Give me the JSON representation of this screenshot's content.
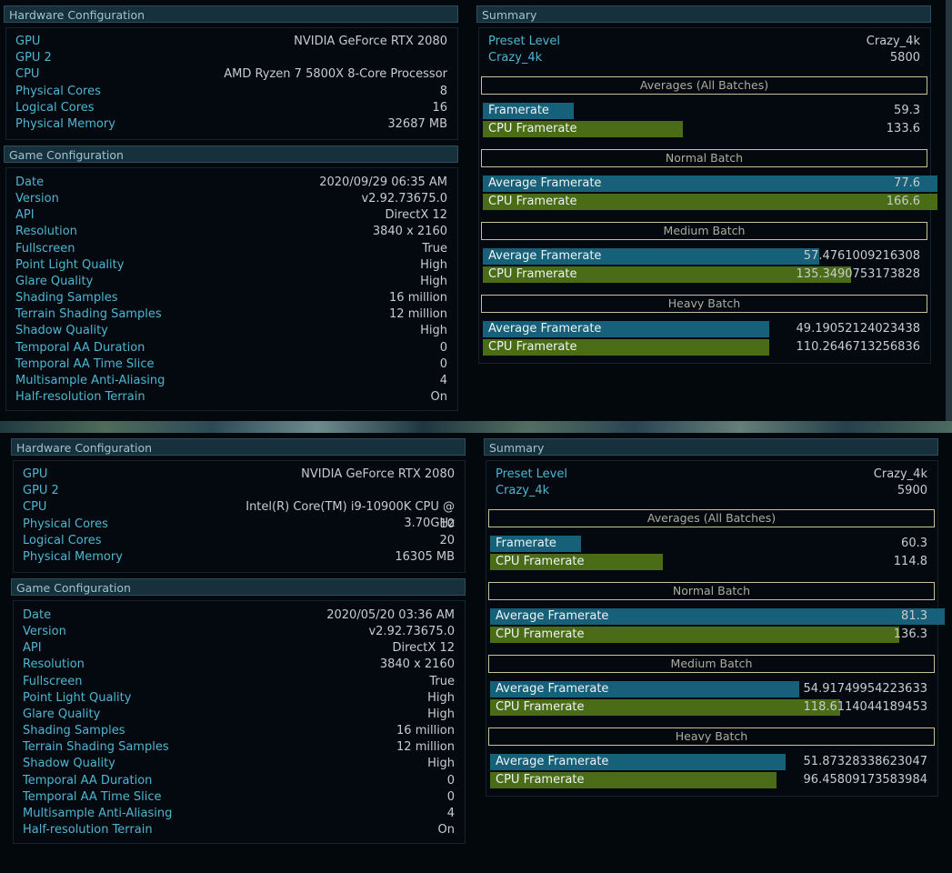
{
  "screens": [
    {
      "hardware": {
        "title": "Hardware Configuration",
        "rows": [
          {
            "label": "GPU",
            "value": "NVIDIA GeForce RTX 2080"
          },
          {
            "label": "GPU 2",
            "value": ""
          },
          {
            "label": "CPU",
            "value": "AMD Ryzen 7 5800X 8-Core Processor"
          },
          {
            "label": "Physical Cores",
            "value": "8"
          },
          {
            "label": "Logical Cores",
            "value": "16"
          },
          {
            "label": "Physical Memory",
            "value": "32687 MB"
          }
        ]
      },
      "game": {
        "title": "Game Configuration",
        "rows": [
          {
            "label": "Date",
            "value": "2020/09/29 06:35 AM"
          },
          {
            "label": "Version",
            "value": "v2.92.73675.0"
          },
          {
            "label": "API",
            "value": "DirectX 12"
          },
          {
            "label": "Resolution",
            "value": "3840 x 2160"
          },
          {
            "label": "Fullscreen",
            "value": "True"
          },
          {
            "label": "Point Light Quality",
            "value": "High"
          },
          {
            "label": "Glare Quality",
            "value": "High"
          },
          {
            "label": "Shading Samples",
            "value": "16 million"
          },
          {
            "label": "Terrain Shading Samples",
            "value": "12 million"
          },
          {
            "label": "Shadow Quality",
            "value": "High"
          },
          {
            "label": "Temporal AA Duration",
            "value": "0"
          },
          {
            "label": "Temporal AA Time Slice",
            "value": "0"
          },
          {
            "label": "Multisample Anti-Aliasing",
            "value": "4"
          },
          {
            "label": "Half-resolution Terrain",
            "value": "On"
          }
        ]
      },
      "summary": {
        "title": "Summary",
        "preset_label": "Preset Level",
        "preset_value": "Crazy_4k",
        "score_label": "Crazy_4k",
        "score_value": "5800",
        "sections": [
          {
            "title": "Averages (All Batches)",
            "bars": [
              {
                "label": "Framerate",
                "value": "59.3",
                "fraction": 0.2,
                "color": "blue"
              },
              {
                "label": "CPU Framerate",
                "value": "133.6",
                "fraction": 0.44,
                "color": "green"
              }
            ]
          },
          {
            "title": "Normal Batch",
            "bars": [
              {
                "label": "Average Framerate",
                "value": "77.6",
                "fraction": 1.0,
                "color": "blue"
              },
              {
                "label": "CPU Framerate",
                "value": "166.6",
                "fraction": 1.0,
                "color": "green"
              }
            ]
          },
          {
            "title": "Medium Batch",
            "bars": [
              {
                "label": "Average Framerate",
                "value": "57.4761009216308",
                "fraction": 0.74,
                "color": "blue"
              },
              {
                "label": "CPU Framerate",
                "value": "135.3490753173828",
                "fraction": 0.81,
                "color": "green"
              }
            ]
          },
          {
            "title": "Heavy Batch",
            "bars": [
              {
                "label": "Average Framerate",
                "value": "49.19052124023438",
                "fraction": 0.63,
                "color": "blue"
              },
              {
                "label": "CPU Framerate",
                "value": "110.2646713256836",
                "fraction": 0.63,
                "color": "green"
              }
            ]
          }
        ]
      }
    },
    {
      "hardware": {
        "title": "Hardware Configuration",
        "rows": [
          {
            "label": "GPU",
            "value": "NVIDIA GeForce RTX 2080"
          },
          {
            "label": "GPU 2",
            "value": ""
          },
          {
            "label": "CPU",
            "value": "Intel(R) Core(TM) i9-10900K CPU @ 3.70GHz"
          },
          {
            "label": "Physical Cores",
            "value": "10"
          },
          {
            "label": "Logical Cores",
            "value": "20"
          },
          {
            "label": "Physical Memory",
            "value": "16305 MB"
          }
        ]
      },
      "game": {
        "title": "Game Configuration",
        "rows": [
          {
            "label": "Date",
            "value": "2020/05/20 03:36 AM"
          },
          {
            "label": "Version",
            "value": "v2.92.73675.0"
          },
          {
            "label": "API",
            "value": "DirectX 12"
          },
          {
            "label": "Resolution",
            "value": "3840 x 2160"
          },
          {
            "label": "Fullscreen",
            "value": "True"
          },
          {
            "label": "Point Light Quality",
            "value": "High"
          },
          {
            "label": "Glare Quality",
            "value": "High"
          },
          {
            "label": "Shading Samples",
            "value": "16 million"
          },
          {
            "label": "Terrain Shading Samples",
            "value": "12 million"
          },
          {
            "label": "Shadow Quality",
            "value": "High"
          },
          {
            "label": "Temporal AA Duration",
            "value": "0"
          },
          {
            "label": "Temporal AA Time Slice",
            "value": "0"
          },
          {
            "label": "Multisample Anti-Aliasing",
            "value": "4"
          },
          {
            "label": "Half-resolution Terrain",
            "value": "On"
          }
        ]
      },
      "summary": {
        "title": "Summary",
        "preset_label": "Preset Level",
        "preset_value": "Crazy_4k",
        "score_label": "Crazy_4k",
        "score_value": "5900",
        "sections": [
          {
            "title": "Averages (All Batches)",
            "bars": [
              {
                "label": "Framerate",
                "value": "60.3",
                "fraction": 0.2,
                "color": "blue"
              },
              {
                "label": "CPU Framerate",
                "value": "114.8",
                "fraction": 0.38,
                "color": "green"
              }
            ]
          },
          {
            "title": "Normal Batch",
            "bars": [
              {
                "label": "Average Framerate",
                "value": "81.3",
                "fraction": 1.0,
                "color": "blue"
              },
              {
                "label": "CPU Framerate",
                "value": "136.3",
                "fraction": 0.9,
                "color": "green"
              }
            ]
          },
          {
            "title": "Medium Batch",
            "bars": [
              {
                "label": "Average Framerate",
                "value": "54.91749954223633",
                "fraction": 0.68,
                "color": "blue"
              },
              {
                "label": "CPU Framerate",
                "value": "118.6114044189453",
                "fraction": 0.77,
                "color": "green"
              }
            ]
          },
          {
            "title": "Heavy Batch",
            "bars": [
              {
                "label": "Average Framerate",
                "value": "51.87328338623047",
                "fraction": 0.65,
                "color": "blue"
              },
              {
                "label": "CPU Framerate",
                "value": "96.45809173583984",
                "fraction": 0.63,
                "color": "green"
              }
            ]
          }
        ]
      }
    }
  ]
}
